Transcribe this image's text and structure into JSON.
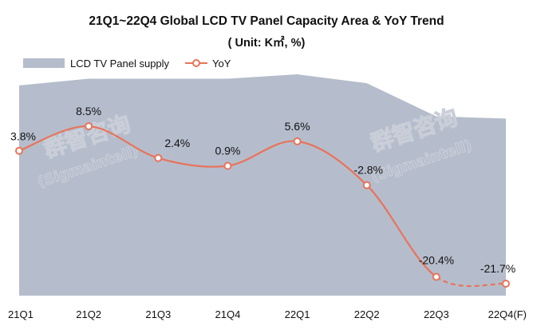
{
  "chart_data": {
    "type": "area+line",
    "title_line1": "21Q1~22Q4 Global LCD TV Panel Capacity Area & YoY Trend",
    "title_line2": "( Unit: K㎡,  %)",
    "categories": [
      "21Q1",
      "21Q2",
      "21Q3",
      "21Q4",
      "22Q1",
      "22Q2",
      "22Q3",
      "22Q4(F)"
    ],
    "series": [
      {
        "name": "LCD TV Panel supply",
        "kind": "area",
        "relative_values": [
          0.95,
          0.98,
          0.98,
          0.98,
          1.0,
          0.96,
          0.81,
          0.8
        ]
      },
      {
        "name": "YoY",
        "kind": "line",
        "unit": "%",
        "values": [
          3.8,
          8.5,
          2.4,
          0.9,
          5.6,
          -2.8,
          -20.4,
          -21.7
        ],
        "labels": [
          "3.8%",
          "8.5%",
          "2.4%",
          "0.9%",
          "5.6%",
          "-2.8%",
          "-20.4%",
          "-21.7%"
        ],
        "forecast_from_index": 6
      }
    ],
    "legend_position": "top-left",
    "grid": false,
    "colors": {
      "area": "#b5bdcc",
      "line": "#e9735a",
      "marker_fill": "#ffffff"
    },
    "watermark": [
      "群智咨询",
      "(Sigmaintell)"
    ]
  }
}
